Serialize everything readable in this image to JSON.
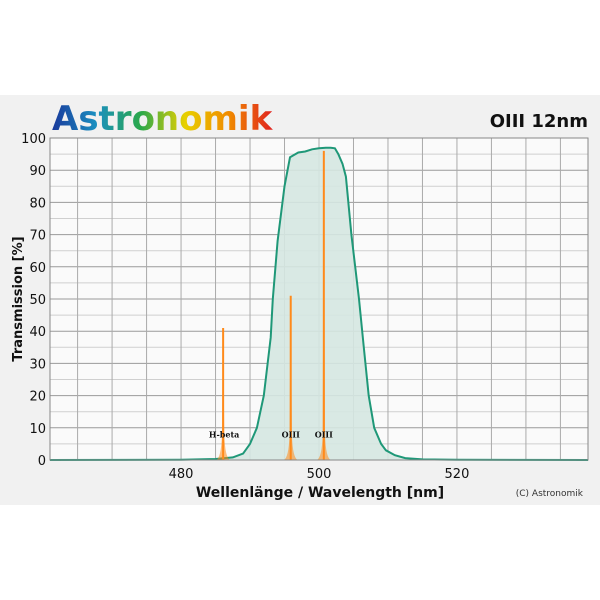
{
  "brand": {
    "logo_text": "Astronomik",
    "logo_colors": [
      "#1a3a9c",
      "#1a8fc0",
      "#2aa84a",
      "#e8d000",
      "#f08a00",
      "#e02020"
    ]
  },
  "chart_data": {
    "type": "line",
    "title": "OIII 12nm",
    "xlabel": "Wellenlänge / Wavelength [nm]",
    "ylabel": "Transmission [%]",
    "copyright": "(C) Astronomik",
    "xlim": [
      461,
      539
    ],
    "ylim": [
      0,
      100
    ],
    "xticks": [
      480,
      500,
      520
    ],
    "yticks": [
      0,
      10,
      20,
      30,
      40,
      50,
      60,
      70,
      80,
      90,
      100
    ],
    "grid": true,
    "colors": {
      "filter_line": "#1f9878",
      "filter_fill": "#d5e7e1",
      "emission": "#ff8a1a"
    },
    "filter_curve": {
      "x": [
        461,
        480,
        485,
        487.5,
        489,
        490,
        491,
        492,
        493,
        493.3,
        494,
        495,
        495.8,
        497,
        498,
        499,
        500,
        501,
        501.7,
        502.3,
        502.8,
        503.4,
        503.9,
        504.7,
        505.8,
        506.5,
        507.2,
        508,
        509,
        509.7,
        511,
        512.5,
        515,
        520,
        539
      ],
      "y": [
        0,
        0.1,
        0.3,
        0.8,
        2,
        5,
        10,
        20,
        38,
        50,
        68,
        85,
        94,
        95.5,
        95.8,
        96.5,
        96.8,
        97,
        97,
        96.8,
        95,
        92,
        88,
        70,
        50,
        35,
        20,
        10,
        5,
        3,
        1.5,
        0.6,
        0.2,
        0.05,
        0
      ]
    },
    "emission_lines": [
      {
        "label": "H-beta",
        "x": 486.1,
        "y": 41
      },
      {
        "label": "OIII",
        "x": 495.9,
        "y": 51
      },
      {
        "label": "OIII",
        "x": 500.7,
        "y": 96
      }
    ]
  }
}
